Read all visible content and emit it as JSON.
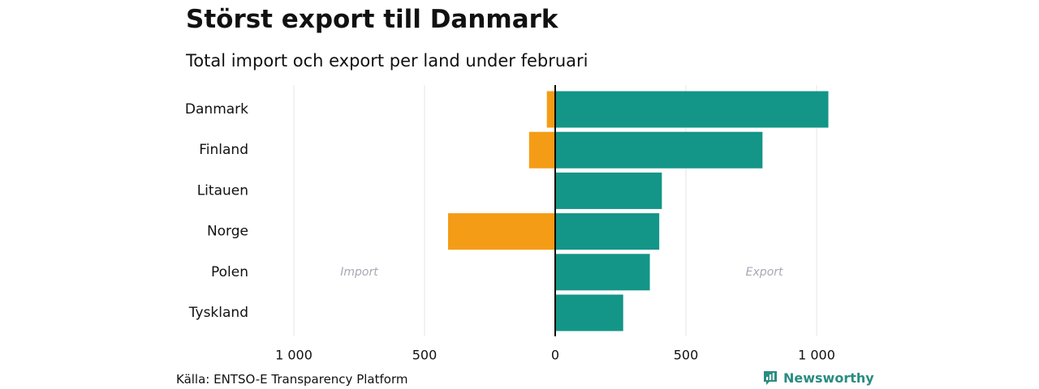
{
  "title": "Störst export till Danmark",
  "subtitle": "Total import och export per land under februari",
  "source": "Källa: ENTSO-E Transparency Platform",
  "brand": {
    "name": "Newsworthy",
    "icon": "newsworthy-logo-icon"
  },
  "colors": {
    "import": "#f49c16",
    "export": "#139587",
    "grid": "#e6e6e6",
    "zero_line": "#000000",
    "annotation": "#a8a8b4",
    "brand": "#2a8c80"
  },
  "chart_data": {
    "type": "bar",
    "orientation": "horizontal",
    "diverging": true,
    "categories": [
      "Danmark",
      "Finland",
      "Litauen",
      "Norge",
      "Polen",
      "Tyskland"
    ],
    "series": [
      {
        "name": "Import",
        "values": [
          -32,
          -100,
          0,
          -410,
          0,
          0
        ]
      },
      {
        "name": "Export",
        "values": [
          1045,
          793,
          408,
          398,
          362,
          260
        ]
      }
    ],
    "annotations": [
      {
        "text": "Import",
        "x": -750,
        "category": "Polen"
      },
      {
        "text": "Export",
        "x": 800,
        "category": "Polen"
      }
    ],
    "xticks": [
      -1000,
      -500,
      0,
      500,
      1000
    ],
    "xtick_labels": [
      "1 000",
      "500",
      "0",
      "500",
      "1 000"
    ],
    "xlim": [
      -1000,
      1050
    ],
    "grid": true
  }
}
